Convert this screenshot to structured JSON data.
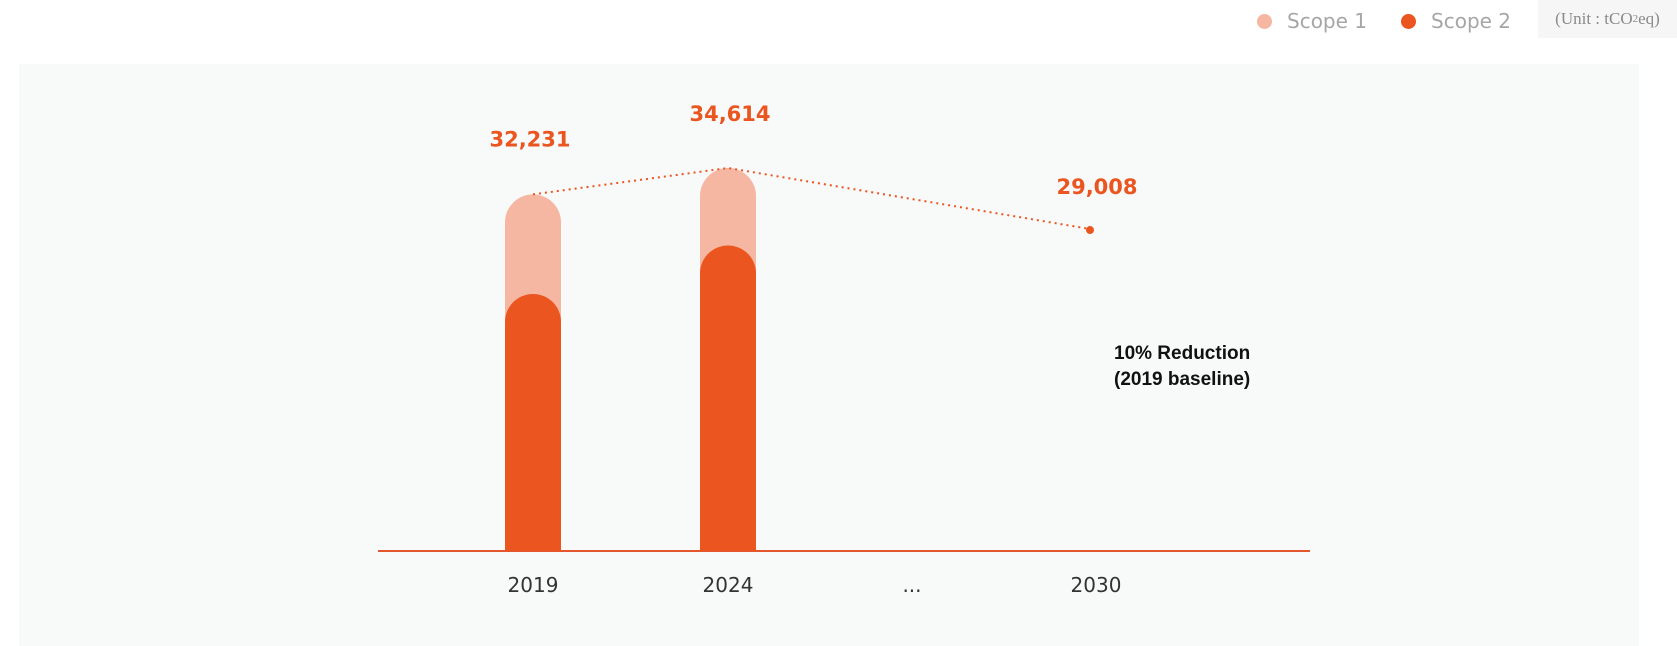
{
  "legend": {
    "items": [
      {
        "label": "Scope 1",
        "color": "#f5b7a2"
      },
      {
        "label": "Scope 2",
        "color": "#ea5520"
      }
    ],
    "unit_prefix": "(Unit : tCO",
    "unit_sub": "2",
    "unit_suffix": "eq)"
  },
  "chart_data": {
    "type": "bar",
    "stacked": true,
    "categories": [
      "2019",
      "2024",
      "...",
      "2030"
    ],
    "series": [
      {
        "name": "Scope 1",
        "color": "#f5b7a2",
        "values": [
          9000,
          7000,
          null,
          null
        ]
      },
      {
        "name": "Scope 2",
        "color": "#ea5520",
        "values": [
          23231,
          27614,
          null,
          null
        ]
      }
    ],
    "totals": [
      {
        "category": "2019",
        "value": 32231,
        "label": "32,231"
      },
      {
        "category": "2024",
        "value": 34614,
        "label": "34,614"
      },
      {
        "category": "2030",
        "value": 29008,
        "label": "29,008"
      }
    ],
    "trend_line": [
      "2019",
      "2024",
      "2030"
    ],
    "target_annotation": [
      "10% Reduction",
      "(2019 baseline)"
    ],
    "ylim": [
      0,
      40000
    ],
    "grid": false,
    "legend_position": "top-right",
    "colors": {
      "accent": "#ea5520",
      "light": "#f5b7a2",
      "axis": "#e4572e"
    }
  }
}
